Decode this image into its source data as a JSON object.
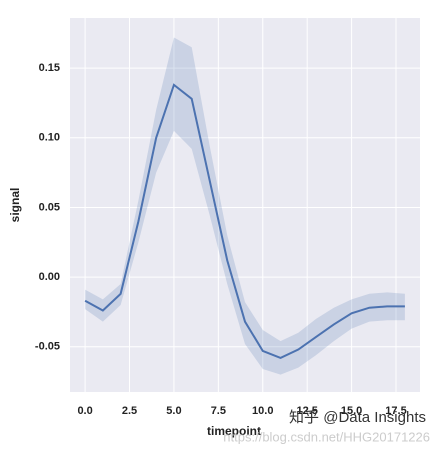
{
  "chart_data": {
    "type": "line",
    "xlabel": "timepoint",
    "ylabel": "signal",
    "x": [
      0,
      1,
      2,
      3,
      4,
      5,
      6,
      7,
      8,
      9,
      10,
      11,
      12,
      13,
      14,
      15,
      16,
      17,
      18
    ],
    "series": [
      {
        "color": "#4c72b0",
        "values": [
          -0.017,
          -0.024,
          -0.012,
          0.04,
          0.1,
          0.138,
          0.128,
          0.07,
          0.012,
          -0.032,
          -0.053,
          -0.058,
          -0.052,
          -0.043,
          -0.034,
          -0.026,
          -0.022,
          -0.021,
          -0.021
        ],
        "ci_lower": [
          -0.023,
          -0.032,
          -0.02,
          0.025,
          0.075,
          0.105,
          0.092,
          0.045,
          -0.005,
          -0.048,
          -0.066,
          -0.07,
          -0.065,
          -0.056,
          -0.046,
          -0.037,
          -0.032,
          -0.031,
          -0.031
        ],
        "ci_upper": [
          -0.009,
          -0.016,
          -0.005,
          0.055,
          0.12,
          0.172,
          0.165,
          0.095,
          0.03,
          -0.018,
          -0.038,
          -0.046,
          -0.04,
          -0.03,
          -0.022,
          -0.016,
          -0.012,
          -0.011,
          -0.012
        ]
      }
    ],
    "xlim": [
      -0.85,
      18.85
    ],
    "ylim": [
      -0.0825,
      0.186
    ],
    "xticks": [
      {
        "value": 0,
        "label": "0.0"
      },
      {
        "value": 2.5,
        "label": "2.5"
      },
      {
        "value": 5,
        "label": "5.0"
      },
      {
        "value": 7.5,
        "label": "7.5"
      },
      {
        "value": 10,
        "label": "10.0"
      },
      {
        "value": 12.5,
        "label": "12.5"
      },
      {
        "value": 15,
        "label": "15.0"
      },
      {
        "value": 17.5,
        "label": "17.5"
      }
    ],
    "yticks": [
      {
        "value": -0.05,
        "label": "-0.05"
      },
      {
        "value": 0,
        "label": "0.00"
      },
      {
        "value": 0.05,
        "label": "0.05"
      },
      {
        "value": 0.1,
        "label": "0.10"
      },
      {
        "value": 0.15,
        "label": "0.15"
      }
    ],
    "grid": true,
    "annotations": [
      "知乎 @Data Insights",
      "https://blog.csdn.net/HHG20171226"
    ]
  }
}
